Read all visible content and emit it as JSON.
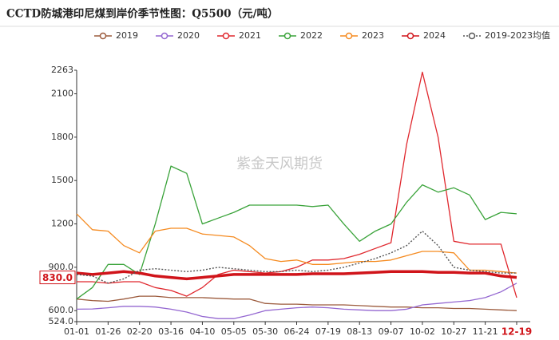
{
  "chart_data": {
    "type": "line",
    "title": "CCTD防城港印尼煤到岸价季节性图：Q5500（元/吨）",
    "watermark": "紫金天风期货",
    "categories": [
      "01-01",
      null,
      "01-26",
      null,
      "02-20",
      null,
      "03-16",
      null,
      "04-10",
      null,
      "05-05",
      null,
      "05-30",
      null,
      "06-24",
      null,
      "07-19",
      null,
      "08-13",
      null,
      "09-07",
      null,
      "10-02",
      null,
      "10-27",
      null,
      "11-21",
      null,
      "12-19"
    ],
    "ylim": [
      524,
      2263
    ],
    "yticks": [
      {
        "value": 524,
        "label": "524.0"
      },
      {
        "value": 600,
        "label": "600.0"
      },
      {
        "value": 900,
        "label": "900.0"
      },
      1200,
      1500,
      1800,
      2100,
      2263
    ],
    "marker": {
      "value": 830,
      "label": "830.0",
      "color": "#d0141a"
    },
    "grid": false,
    "legend": "top",
    "series": [
      {
        "name": "2019",
        "color": "#9c5b3d",
        "line_style": "solid",
        "line_width": 1.3,
        "values": [
          680,
          670,
          665,
          680,
          700,
          700,
          690,
          690,
          690,
          685,
          680,
          680,
          650,
          645,
          645,
          640,
          640,
          640,
          635,
          630,
          625,
          625,
          620,
          620,
          615,
          615,
          610,
          605,
          600
        ]
      },
      {
        "name": "2020",
        "color": "#9467d1",
        "line_style": "solid",
        "line_width": 1.3,
        "values": [
          610,
          612,
          620,
          630,
          630,
          625,
          610,
          590,
          560,
          545,
          545,
          570,
          600,
          610,
          620,
          625,
          620,
          610,
          605,
          600,
          600,
          610,
          640,
          650,
          660,
          670,
          690,
          730,
          790
        ]
      },
      {
        "name": "2021",
        "color": "#e0282e",
        "line_style": "solid",
        "line_width": 1.3,
        "values": [
          800,
          800,
          790,
          800,
          800,
          760,
          740,
          700,
          760,
          850,
          880,
          870,
          860,
          870,
          900,
          950,
          950,
          960,
          990,
          1030,
          1070,
          1750,
          2250,
          1800,
          1080,
          1060,
          1060,
          1060,
          690
        ]
      },
      {
        "name": "2022",
        "color": "#3aa33a",
        "line_style": "solid",
        "line_width": 1.3,
        "values": [
          680,
          760,
          920,
          920,
          850,
          1200,
          1600,
          1550,
          1200,
          1240,
          1280,
          1330,
          1330,
          1330,
          1330,
          1320,
          1330,
          1200,
          1080,
          1150,
          1200,
          1350,
          1470,
          1420,
          1450,
          1400,
          1230,
          1280,
          1270
        ]
      },
      {
        "name": "2023",
        "color": "#f58a1f",
        "line_style": "solid",
        "line_width": 1.3,
        "values": [
          1270,
          1160,
          1150,
          1050,
          1000,
          1150,
          1170,
          1170,
          1130,
          1120,
          1110,
          1050,
          960,
          940,
          950,
          920,
          920,
          930,
          940,
          940,
          950,
          980,
          1010,
          1010,
          1000,
          880,
          880,
          870,
          860
        ]
      },
      {
        "name": "2024",
        "color": "#d0141a",
        "line_style": "solid",
        "line_width": 3.5,
        "values": [
          860,
          850,
          860,
          870,
          860,
          840,
          830,
          820,
          830,
          840,
          850,
          850,
          850,
          850,
          850,
          855,
          855,
          855,
          860,
          865,
          870,
          870,
          870,
          865,
          865,
          860,
          860,
          840,
          830
        ]
      },
      {
        "name": "2019-2023均值",
        "color": "#555555",
        "line_style": "dotted",
        "line_width": 1.4,
        "values": [
          850,
          840,
          790,
          820,
          880,
          890,
          880,
          870,
          880,
          900,
          890,
          880,
          870,
          870,
          880,
          870,
          880,
          900,
          930,
          960,
          1000,
          1050,
          1150,
          1050,
          900,
          880,
          870,
          860,
          860
        ]
      }
    ]
  }
}
